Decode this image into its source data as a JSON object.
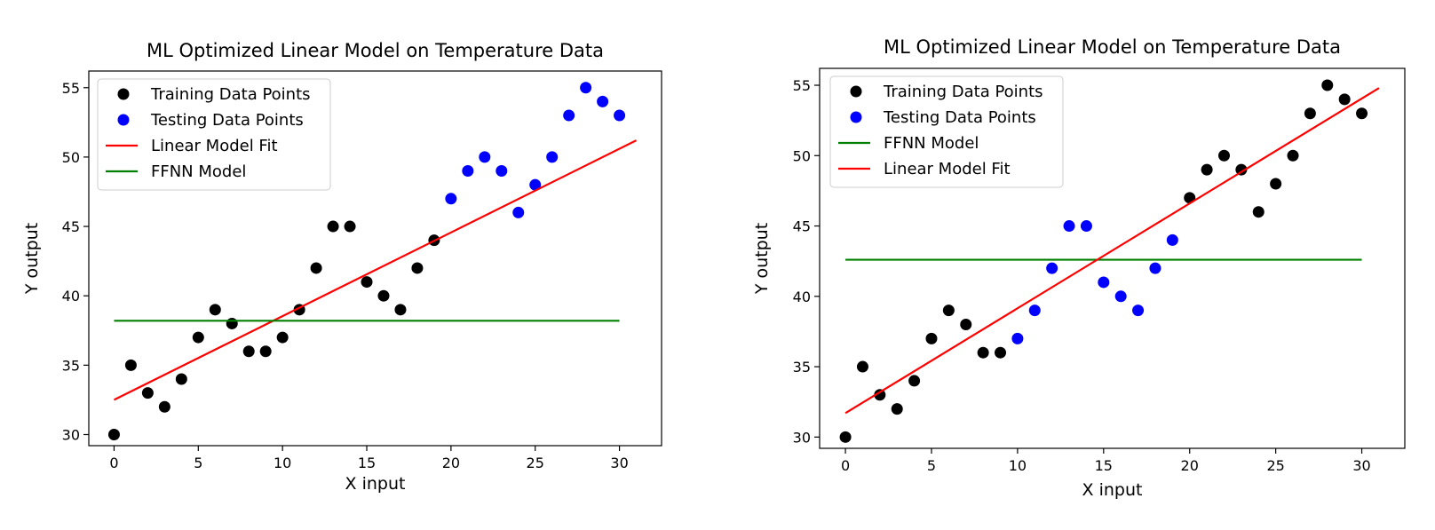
{
  "chart_data": [
    {
      "type": "scatter",
      "title": "ML Optimized Linear Model on Temperature Data",
      "xlabel": "X input",
      "ylabel": "Y output",
      "xlim": [
        -1.5,
        32.5
      ],
      "ylim": [
        29.2,
        56.2
      ],
      "xticks": [
        0,
        5,
        10,
        15,
        20,
        25,
        30
      ],
      "yticks": [
        30,
        35,
        40,
        45,
        50,
        55
      ],
      "grid": false,
      "legend_position": "top-left",
      "legend": [
        {
          "label": "Training Data Points",
          "kind": "marker",
          "color": "#000000"
        },
        {
          "label": "Testing Data Points",
          "kind": "marker",
          "color": "#0000ff"
        },
        {
          "label": "Linear Model Fit",
          "kind": "line",
          "color": "#ff0000"
        },
        {
          "label": "FFNN Model",
          "kind": "line",
          "color": "#008000"
        }
      ],
      "series": [
        {
          "name": "Training Data Points",
          "type": "scatter",
          "color": "#000000",
          "x": [
            0,
            1,
            2,
            3,
            4,
            5,
            6,
            7,
            8,
            9,
            10,
            11,
            12,
            13,
            14,
            15,
            16,
            17,
            18,
            19
          ],
          "y": [
            30,
            35,
            33,
            32,
            34,
            37,
            39,
            38,
            36,
            36,
            37,
            39,
            42,
            45,
            45,
            41,
            40,
            39,
            42,
            44
          ]
        },
        {
          "name": "Testing Data Points",
          "type": "scatter",
          "color": "#0000ff",
          "x": [
            20,
            21,
            22,
            23,
            24,
            25,
            26,
            27,
            28,
            29,
            30
          ],
          "y": [
            47,
            49,
            50,
            49,
            46,
            48,
            50,
            53,
            55,
            54,
            53
          ]
        },
        {
          "name": "Linear Model Fit",
          "type": "line",
          "color": "#ff0000",
          "x": [
            0,
            31
          ],
          "y": [
            32.5,
            51.2
          ]
        },
        {
          "name": "FFNN Model",
          "type": "line",
          "color": "#008000",
          "x": [
            0,
            30
          ],
          "y": [
            38.2,
            38.2
          ]
        }
      ]
    },
    {
      "type": "scatter",
      "title": "ML Optimized Linear Model on Temperature Data",
      "xlabel": "X input",
      "ylabel": "Y output",
      "xlim": [
        -1.5,
        32.5
      ],
      "ylim": [
        29.2,
        56.2
      ],
      "xticks": [
        0,
        5,
        10,
        15,
        20,
        25,
        30
      ],
      "yticks": [
        30,
        35,
        40,
        45,
        50,
        55
      ],
      "grid": false,
      "legend_position": "top-left",
      "legend": [
        {
          "label": "Training Data Points",
          "kind": "marker",
          "color": "#000000"
        },
        {
          "label": "Testing Data Points",
          "kind": "marker",
          "color": "#0000ff"
        },
        {
          "label": "FFNN Model",
          "kind": "line",
          "color": "#008000"
        },
        {
          "label": "Linear Model Fit",
          "kind": "line",
          "color": "#ff0000"
        }
      ],
      "series": [
        {
          "name": "Training Data Points",
          "type": "scatter",
          "color": "#000000",
          "x": [
            0,
            1,
            2,
            3,
            4,
            5,
            6,
            7,
            8,
            9,
            20,
            21,
            22,
            23,
            24,
            25,
            26,
            27,
            28,
            29,
            30
          ],
          "y": [
            30,
            35,
            33,
            32,
            34,
            37,
            39,
            38,
            36,
            36,
            47,
            49,
            50,
            49,
            46,
            48,
            50,
            53,
            55,
            54,
            53
          ]
        },
        {
          "name": "Testing Data Points",
          "type": "scatter",
          "color": "#0000ff",
          "x": [
            10,
            11,
            12,
            13,
            14,
            15,
            16,
            17,
            18,
            19
          ],
          "y": [
            37,
            39,
            42,
            45,
            45,
            41,
            40,
            39,
            42,
            44
          ]
        },
        {
          "name": "FFNN Model",
          "type": "line",
          "color": "#008000",
          "x": [
            0,
            30
          ],
          "y": [
            42.6,
            42.6
          ]
        },
        {
          "name": "Linear Model Fit",
          "type": "line",
          "color": "#ff0000",
          "x": [
            0,
            31
          ],
          "y": [
            31.7,
            54.8
          ]
        }
      ]
    }
  ]
}
